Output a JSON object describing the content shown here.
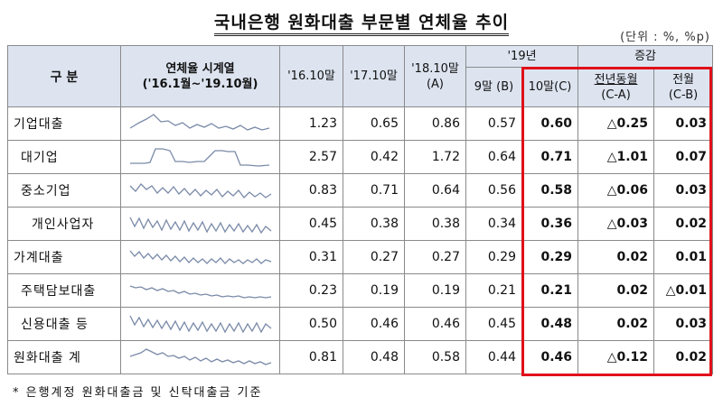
{
  "title": "국내은행 원화대출 부문별 연체율 추이",
  "unit": "(단위 : %, %p)",
  "header": {
    "category": "구  분",
    "sparkline_title": "연체율 시계열",
    "sparkline_sub": "('16.1월~'19.10월)",
    "c2016": "'16.10말",
    "c2017": "'17.10말",
    "c2018_a": "'18.10말",
    "c2018_b": "(A)",
    "y2019": "'19년",
    "sep": "9말 (B)",
    "oct": "10말(C)",
    "change": "증감",
    "yoy_a": "전년동월",
    "yoy_b": "(C-A)",
    "mom_a": "전월",
    "mom_b": "(C-B)"
  },
  "rows": [
    {
      "label": "기업대출",
      "v2016": "1.23",
      "v2017": "0.65",
      "v2018": "0.86",
      "sep": "0.57",
      "oct": "0.60",
      "yoy": "△0.25",
      "mom": "0.03"
    },
    {
      "label": "대기업",
      "v2016": "2.57",
      "v2017": "0.42",
      "v2018": "1.72",
      "sep": "0.64",
      "oct": "0.71",
      "yoy": "△1.01",
      "mom": "0.07"
    },
    {
      "label": "중소기업",
      "v2016": "0.83",
      "v2017": "0.71",
      "v2018": "0.64",
      "sep": "0.56",
      "oct": "0.58",
      "yoy": "△0.06",
      "mom": "0.03"
    },
    {
      "label": "개인사업자",
      "v2016": "0.45",
      "v2017": "0.38",
      "v2018": "0.38",
      "sep": "0.34",
      "oct": "0.36",
      "yoy": "△0.03",
      "mom": "0.02"
    },
    {
      "label": "가계대출",
      "v2016": "0.31",
      "v2017": "0.27",
      "v2018": "0.27",
      "sep": "0.29",
      "oct": "0.29",
      "yoy": "0.02",
      "mom": "0.01"
    },
    {
      "label": "주택담보대출",
      "v2016": "0.23",
      "v2017": "0.19",
      "v2018": "0.19",
      "sep": "0.21",
      "oct": "0.21",
      "yoy": "0.02",
      "mom": "△0.01"
    },
    {
      "label": "신용대출 등",
      "v2016": "0.50",
      "v2017": "0.46",
      "v2018": "0.46",
      "sep": "0.45",
      "oct": "0.48",
      "yoy": "0.02",
      "mom": "0.03"
    },
    {
      "label": "원화대출 계",
      "v2016": "0.81",
      "v2017": "0.48",
      "v2018": "0.58",
      "sep": "0.44",
      "oct": "0.46",
      "yoy": "△0.12",
      "mom": "0.02"
    }
  ],
  "note": "* 은행계정 원화대출금 및 신탁대출금 기준"
}
